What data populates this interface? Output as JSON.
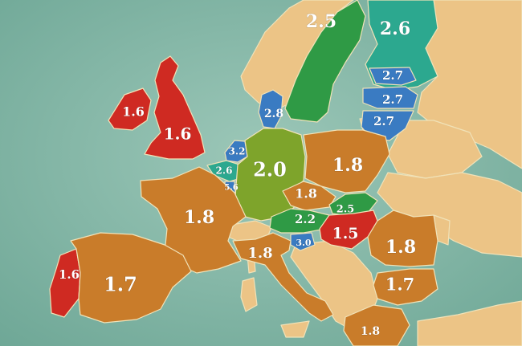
{
  "map": {
    "colors": {
      "sea": "#7fb3a4",
      "land": "#ecc486",
      "red": "#cf2a22",
      "orange": "#c97c2a",
      "olive": "#7ea42b",
      "green": "#2f9a45",
      "teal": "#2ca88f",
      "blue": "#3a7bc2"
    },
    "regions": [
      {
        "id": "sweden",
        "label": "2.5",
        "color": "green"
      },
      {
        "id": "finland",
        "label": "2.6",
        "color": "teal"
      },
      {
        "id": "estonia",
        "label": "2.7",
        "color": "blue"
      },
      {
        "id": "latvia",
        "label": "2.7",
        "color": "blue"
      },
      {
        "id": "lithuania",
        "label": "2.7",
        "color": "blue"
      },
      {
        "id": "denmark",
        "label": "2.8",
        "color": "blue"
      },
      {
        "id": "ireland",
        "label": "1.6",
        "color": "red"
      },
      {
        "id": "uk",
        "label": "1.6",
        "color": "red"
      },
      {
        "id": "netherlands",
        "label": "3.2",
        "color": "blue"
      },
      {
        "id": "belgium",
        "label": "2.6",
        "color": "teal"
      },
      {
        "id": "luxembourg",
        "label": "5.6",
        "color": "blue"
      },
      {
        "id": "germany",
        "label": "2.0",
        "color": "olive"
      },
      {
        "id": "poland",
        "label": "1.8",
        "color": "orange"
      },
      {
        "id": "czechia",
        "label": "1.8",
        "color": "orange"
      },
      {
        "id": "slovakia",
        "label": "2.5",
        "color": "green"
      },
      {
        "id": "austria",
        "label": "2.2",
        "color": "green"
      },
      {
        "id": "slovenia",
        "label": "3.0",
        "color": "blue"
      },
      {
        "id": "hungary",
        "label": "1.5",
        "color": "red"
      },
      {
        "id": "france",
        "label": "1.8",
        "color": "orange"
      },
      {
        "id": "italy",
        "label": "1.8",
        "color": "orange"
      },
      {
        "id": "romania",
        "label": "1.8",
        "color": "orange"
      },
      {
        "id": "bulgaria",
        "label": "1.7",
        "color": "orange"
      },
      {
        "id": "portugal",
        "label": "1.6",
        "color": "red"
      },
      {
        "id": "spain",
        "label": "1.7",
        "color": "orange"
      },
      {
        "id": "greece",
        "label": "1.8",
        "color": "orange"
      }
    ]
  }
}
